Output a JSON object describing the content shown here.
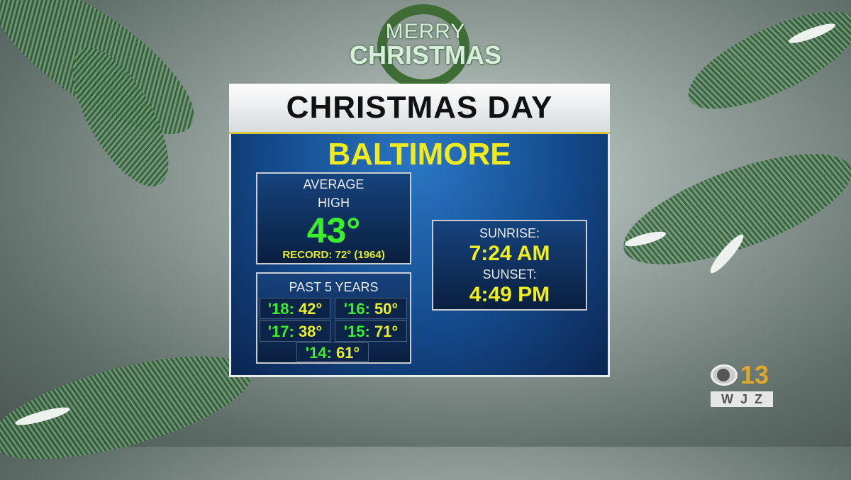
{
  "banner": {
    "line1": "MERRY",
    "line2": "CHRISTMAS"
  },
  "header": {
    "title": "CHRISTMAS DAY"
  },
  "city": "BALTIMORE",
  "average": {
    "label1": "AVERAGE",
    "label2": "HIGH",
    "value": "43°",
    "record": "RECORD: 72° (1964)"
  },
  "past": {
    "title": "PAST 5 YEARS",
    "years": [
      {
        "year": "'18:",
        "temp": "42°"
      },
      {
        "year": "'16:",
        "temp": "50°"
      },
      {
        "year": "'17:",
        "temp": "38°"
      },
      {
        "year": "'15:",
        "temp": "71°"
      },
      {
        "year": "'14:",
        "temp": "61°"
      }
    ]
  },
  "sun": {
    "sunrise_label": "SUNRISE:",
    "sunrise": "7:24 AM",
    "sunset_label": "SUNSET:",
    "sunset": "4:49 PM"
  },
  "logo": {
    "channel": "13",
    "call": "WJZ",
    "network": "CBS"
  },
  "colors": {
    "panel": "#144a8c",
    "yellow": "#f1ea1e",
    "green": "#3bf02a"
  }
}
